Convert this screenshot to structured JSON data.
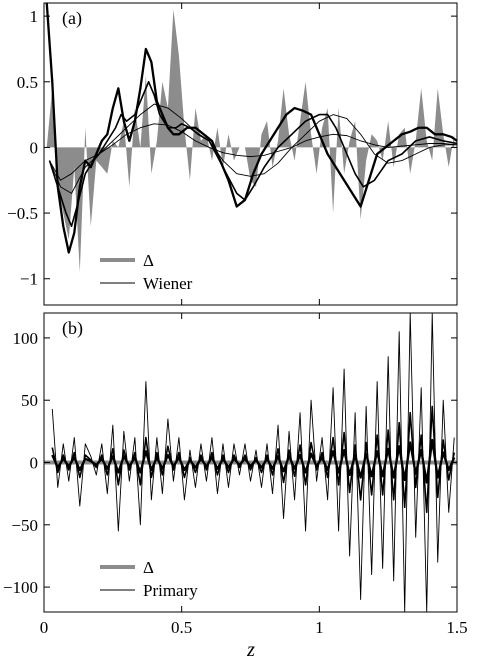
{
  "figure": {
    "xlabel": "z",
    "xlim": [
      0,
      1.5
    ],
    "xticks": [
      0,
      0.5,
      1,
      1.5
    ],
    "xtick_labels": [
      "0",
      "0.5",
      "1",
      "1.5"
    ]
  },
  "chart_data": [
    {
      "type": "area",
      "panel_label": "(a)",
      "xlabel": "z",
      "ylabel": "",
      "xlim": [
        0,
        1.5
      ],
      "ylim": [
        -1.2,
        1.1
      ],
      "yticks": [
        1,
        0.5,
        0,
        -0.5,
        -1
      ],
      "ytick_labels": [
        "1",
        "0.5",
        "0",
        "−0.5",
        "−1"
      ],
      "legend": {
        "placement": "bottom-left",
        "entries": [
          "Δ",
          "Wiener"
        ]
      },
      "delta": {
        "x": [
          0.01,
          0.03,
          0.05,
          0.07,
          0.09,
          0.11,
          0.13,
          0.15,
          0.17,
          0.19,
          0.21,
          0.23,
          0.25,
          0.27,
          0.29,
          0.31,
          0.33,
          0.35,
          0.37,
          0.39,
          0.41,
          0.43,
          0.45,
          0.47,
          0.49,
          0.51,
          0.53,
          0.55,
          0.57,
          0.59,
          0.61,
          0.63,
          0.65,
          0.67,
          0.69,
          0.71,
          0.73,
          0.75,
          0.77,
          0.79,
          0.81,
          0.83,
          0.85,
          0.87,
          0.89,
          0.91,
          0.93,
          0.95,
          0.97,
          0.99,
          1.01,
          1.03,
          1.05,
          1.07,
          1.09,
          1.11,
          1.13,
          1.15,
          1.17,
          1.19,
          1.21,
          1.23,
          1.25,
          1.27,
          1.29,
          1.31,
          1.33,
          1.35,
          1.37,
          1.39,
          1.41,
          1.43,
          1.45,
          1.47,
          1.49
        ],
        "y": [
          0,
          0.45,
          -0.3,
          -0.5,
          -0.7,
          -0.15,
          -0.95,
          0.15,
          -0.6,
          -0.1,
          -0.15,
          -0.2,
          0.05,
          0,
          0.2,
          -0.3,
          0.3,
          0,
          0.55,
          -0.2,
          0.05,
          0.5,
          0.3,
          1.05,
          0.7,
          0.15,
          -0.25,
          0.3,
          0.05,
          0.1,
          -0.1,
          0.15,
          -0.15,
          0.1,
          -0.1,
          0,
          0,
          -0.25,
          -0.3,
          0.1,
          0.2,
          -0.15,
          0.05,
          0.45,
          0.1,
          -0.1,
          0.2,
          0.5,
          0.1,
          -0.2,
          0.15,
          0.3,
          -0.5,
          0.3,
          -0.2,
          0.05,
          0.2,
          -0.55,
          -0.1,
          0.1,
          0.05,
          -0.1,
          0.2,
          -0.15,
          0.1,
          0.15,
          -0.2,
          0.05,
          0.45,
          0.05,
          -0.1,
          0.45,
          0.1,
          -0.15,
          0.1
        ]
      },
      "series": [
        {
          "name": "Wiener",
          "stroke": "thin",
          "x": [
            0.02,
            0.06,
            0.1,
            0.15,
            0.2,
            0.25,
            0.3,
            0.35,
            0.4,
            0.45,
            0.5,
            0.55,
            0.6,
            0.65,
            0.7,
            0.75,
            0.8,
            0.85,
            0.9,
            0.95,
            1.0,
            1.05,
            1.1,
            1.15,
            1.2,
            1.25,
            1.3,
            1.35,
            1.4,
            1.45,
            1.5
          ],
          "y": [
            -0.1,
            -0.25,
            -0.2,
            -0.1,
            -0.05,
            0.02,
            0.1,
            0.15,
            0.18,
            0.17,
            0.12,
            0.05,
            0.0,
            -0.04,
            -0.06,
            -0.07,
            -0.06,
            -0.03,
            0.0,
            0.05,
            0.08,
            0.1,
            0.09,
            0.05,
            0.02,
            0.0,
            0.01,
            0.02,
            0.03,
            0.03,
            0.02
          ]
        },
        {
          "stroke": "thin",
          "x": [
            0.02,
            0.06,
            0.1,
            0.15,
            0.2,
            0.25,
            0.3,
            0.35,
            0.4,
            0.45,
            0.5,
            0.55,
            0.6,
            0.65,
            0.7,
            0.75,
            0.8,
            0.85,
            0.9,
            0.95,
            1.0,
            1.05,
            1.1,
            1.15,
            1.2,
            1.25,
            1.3,
            1.35,
            1.4,
            1.45,
            1.5
          ],
          "y": [
            -0.1,
            -0.3,
            -0.35,
            -0.15,
            -0.05,
            0.05,
            0.15,
            0.25,
            0.33,
            0.3,
            0.22,
            0.12,
            0.05,
            -0.1,
            -0.2,
            -0.22,
            -0.2,
            -0.12,
            0.0,
            0.1,
            0.2,
            0.25,
            0.22,
            0.1,
            -0.05,
            -0.12,
            -0.1,
            -0.05,
            0.0,
            0.02,
            0.02
          ]
        },
        {
          "stroke": "medium",
          "x": [
            0.02,
            0.05,
            0.08,
            0.1,
            0.12,
            0.15,
            0.18,
            0.2,
            0.23,
            0.26,
            0.28,
            0.3,
            0.33,
            0.36,
            0.38,
            0.4,
            0.42,
            0.45,
            0.48,
            0.5,
            0.53,
            0.56,
            0.6,
            0.65,
            0.7,
            0.73,
            0.76,
            0.8,
            0.85,
            0.9,
            0.95,
            1.0,
            1.03,
            1.06,
            1.1,
            1.13,
            1.16,
            1.2,
            1.25,
            1.3,
            1.35,
            1.4,
            1.45,
            1.5
          ],
          "y": [
            -0.1,
            -0.3,
            -0.5,
            -0.6,
            -0.45,
            -0.2,
            -0.1,
            -0.05,
            0.05,
            0.15,
            0.25,
            0.2,
            0.25,
            0.4,
            0.5,
            0.4,
            0.25,
            0.15,
            0.15,
            0.18,
            0.15,
            0.1,
            0.05,
            -0.15,
            -0.35,
            -0.4,
            -0.3,
            -0.15,
            0.0,
            0.1,
            0.2,
            0.25,
            0.25,
            0.15,
            -0.05,
            -0.2,
            -0.3,
            -0.25,
            -0.1,
            -0.05,
            0.05,
            0.08,
            0.05,
            0.03
          ]
        },
        {
          "stroke": "thick",
          "x": [
            0.01,
            0.03,
            0.05,
            0.07,
            0.09,
            0.11,
            0.13,
            0.15,
            0.17,
            0.19,
            0.21,
            0.23,
            0.25,
            0.27,
            0.29,
            0.31,
            0.33,
            0.35,
            0.37,
            0.39,
            0.41,
            0.43,
            0.45,
            0.47,
            0.49,
            0.52,
            0.55,
            0.58,
            0.61,
            0.64,
            0.67,
            0.7,
            0.73,
            0.76,
            0.79,
            0.82,
            0.85,
            0.88,
            0.91,
            0.94,
            0.97,
            1.0,
            1.03,
            1.06,
            1.09,
            1.12,
            1.15,
            1.18,
            1.21,
            1.24,
            1.27,
            1.3,
            1.33,
            1.36,
            1.39,
            1.42,
            1.45,
            1.48,
            1.5
          ],
          "y": [
            1.1,
            0.5,
            -0.3,
            -0.6,
            -0.8,
            -0.65,
            -0.3,
            -0.1,
            -0.15,
            -0.05,
            0.05,
            0.1,
            0.3,
            0.45,
            0.2,
            0.05,
            0.2,
            0.45,
            0.75,
            0.65,
            0.35,
            0.25,
            0.15,
            0.1,
            0.1,
            0.15,
            0.15,
            0.1,
            0.05,
            -0.1,
            -0.25,
            -0.45,
            -0.4,
            -0.2,
            -0.05,
            0.05,
            0.15,
            0.25,
            0.3,
            0.28,
            0.25,
            0.1,
            -0.05,
            -0.15,
            -0.25,
            -0.35,
            -0.45,
            -0.25,
            -0.05,
            0.0,
            0.05,
            0.1,
            0.12,
            0.15,
            0.15,
            0.1,
            0.1,
            0.08,
            0.05
          ]
        }
      ]
    },
    {
      "type": "line",
      "panel_label": "(b)",
      "xlabel": "z",
      "ylabel": "",
      "xlim": [
        0,
        1.5
      ],
      "ylim": [
        -120,
        120
      ],
      "yticks": [
        100,
        50,
        0,
        -50,
        -100
      ],
      "ytick_labels": [
        "100",
        "50",
        "0",
        "−50",
        "−100"
      ],
      "legend": {
        "placement": "bottom-left",
        "entries": [
          "Δ",
          "Primary"
        ]
      },
      "delta": {
        "x": [
          0,
          1.5
        ],
        "y": [
          0,
          0
        ]
      },
      "series": [
        {
          "name": "Primary",
          "stroke": "thin",
          "x": [
            0.03,
            0.05,
            0.07,
            0.09,
            0.11,
            0.13,
            0.15,
            0.17,
            0.19,
            0.21,
            0.23,
            0.25,
            0.27,
            0.29,
            0.31,
            0.33,
            0.35,
            0.37,
            0.39,
            0.41,
            0.43,
            0.45,
            0.47,
            0.49,
            0.51,
            0.53,
            0.55,
            0.57,
            0.59,
            0.61,
            0.63,
            0.65,
            0.67,
            0.69,
            0.71,
            0.73,
            0.75,
            0.77,
            0.79,
            0.81,
            0.83,
            0.85,
            0.87,
            0.89,
            0.91,
            0.93,
            0.95,
            0.97,
            0.99,
            1.01,
            1.03,
            1.05,
            1.07,
            1.09,
            1.11,
            1.13,
            1.15,
            1.17,
            1.19,
            1.21,
            1.23,
            1.25,
            1.27,
            1.29,
            1.31,
            1.33,
            1.35,
            1.37,
            1.39,
            1.41,
            1.43,
            1.45,
            1.47,
            1.49
          ],
          "y": [
            43,
            -20,
            15,
            -15,
            20,
            -35,
            15,
            5,
            -10,
            15,
            -25,
            30,
            -55,
            25,
            -15,
            20,
            -50,
            65,
            -30,
            20,
            -25,
            35,
            -15,
            20,
            -30,
            10,
            -20,
            15,
            -15,
            20,
            -25,
            15,
            -20,
            15,
            -10,
            15,
            -15,
            10,
            -20,
            15,
            -25,
            30,
            -45,
            25,
            -30,
            40,
            -55,
            50,
            -15,
            20,
            -30,
            60,
            -55,
            75,
            -75,
            40,
            -110,
            45,
            -90,
            65,
            -85,
            85,
            -95,
            105,
            -120,
            120,
            -60,
            60,
            -120,
            120,
            -80,
            50,
            -40,
            20
          ]
        },
        {
          "stroke": "medium",
          "x": [
            0.03,
            0.05,
            0.07,
            0.09,
            0.11,
            0.13,
            0.15,
            0.17,
            0.19,
            0.21,
            0.23,
            0.25,
            0.27,
            0.29,
            0.31,
            0.33,
            0.35,
            0.37,
            0.39,
            0.41,
            0.43,
            0.45,
            0.47,
            0.49,
            0.51,
            0.53,
            0.55,
            0.57,
            0.59,
            0.61,
            0.63,
            0.65,
            0.67,
            0.69,
            0.71,
            0.73,
            0.75,
            0.77,
            0.79,
            0.81,
            0.83,
            0.85,
            0.87,
            0.89,
            0.91,
            0.93,
            0.95,
            0.97,
            0.99,
            1.01,
            1.03,
            1.05,
            1.07,
            1.09,
            1.11,
            1.13,
            1.15,
            1.17,
            1.19,
            1.21,
            1.23,
            1.25,
            1.27,
            1.29,
            1.31,
            1.33,
            1.35,
            1.37,
            1.39,
            1.41,
            1.43,
            1.45,
            1.47,
            1.49
          ],
          "y": [
            12,
            -8,
            6,
            -6,
            8,
            -12,
            6,
            2,
            -4,
            6,
            -10,
            11,
            -18,
            10,
            -6,
            8,
            -18,
            20,
            -12,
            8,
            -10,
            13,
            -6,
            8,
            -12,
            4,
            -8,
            6,
            -6,
            8,
            -10,
            6,
            -8,
            6,
            -4,
            6,
            -6,
            4,
            -8,
            6,
            -10,
            11,
            -16,
            10,
            -11,
            14,
            -18,
            16,
            -6,
            8,
            -12,
            20,
            -18,
            24,
            -24,
            14,
            -30,
            16,
            -26,
            22,
            -26,
            26,
            -30,
            32,
            -36,
            40,
            -20,
            22,
            -40,
            45,
            -28,
            18,
            -14,
            8
          ]
        },
        {
          "stroke": "thick",
          "x": [
            0.03,
            0.05,
            0.07,
            0.09,
            0.11,
            0.13,
            0.15,
            0.17,
            0.19,
            0.21,
            0.23,
            0.25,
            0.27,
            0.29,
            0.31,
            0.33,
            0.35,
            0.37,
            0.39,
            0.41,
            0.43,
            0.45,
            0.47,
            0.49,
            0.51,
            0.53,
            0.55,
            0.57,
            0.59,
            0.61,
            0.63,
            0.65,
            0.67,
            0.69,
            0.71,
            0.73,
            0.75,
            0.77,
            0.79,
            0.81,
            0.83,
            0.85,
            0.87,
            0.89,
            0.91,
            0.93,
            0.95,
            0.97,
            0.99,
            1.01,
            1.03,
            1.05,
            1.07,
            1.09,
            1.11,
            1.13,
            1.15,
            1.17,
            1.19,
            1.21,
            1.23,
            1.25,
            1.27,
            1.29,
            1.31,
            1.33,
            1.35,
            1.37,
            1.39,
            1.41,
            1.43,
            1.45,
            1.47,
            1.49
          ],
          "y": [
            6,
            -4,
            3,
            -3,
            4,
            -6,
            3,
            1,
            -2,
            3,
            -5,
            5,
            -8,
            5,
            -3,
            4,
            -8,
            9,
            -6,
            4,
            -5,
            6,
            -3,
            4,
            -6,
            2,
            -4,
            3,
            -3,
            4,
            -5,
            3,
            -4,
            3,
            -2,
            3,
            -3,
            2,
            -4,
            3,
            -5,
            5,
            -7,
            5,
            -5,
            6,
            -8,
            7,
            -3,
            4,
            -6,
            9,
            -8,
            10,
            -10,
            6,
            -12,
            7,
            -11,
            9,
            -11,
            11,
            -12,
            13,
            -14,
            16,
            -9,
            10,
            -16,
            18,
            -12,
            8,
            -6,
            4
          ]
        }
      ]
    }
  ]
}
